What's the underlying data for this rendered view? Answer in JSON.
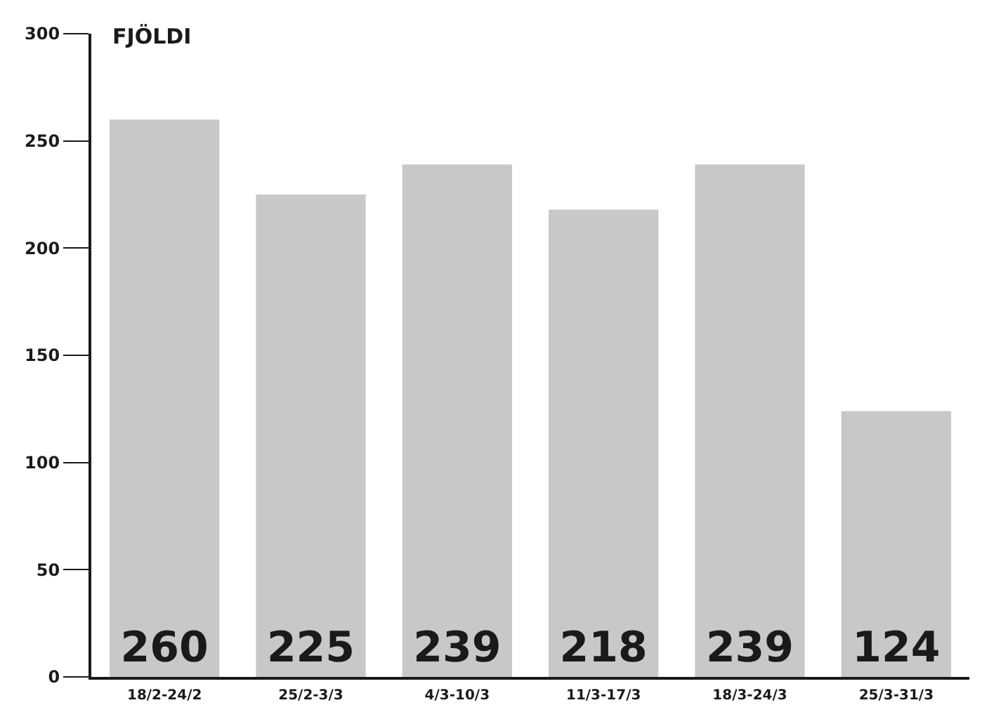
{
  "chart_data": {
    "type": "bar",
    "ylabel": "FJÖLDI",
    "categories": [
      "18/2-24/2",
      "25/2-3/3",
      "4/3-10/3",
      "11/3-17/3",
      "18/3-24/3",
      "25/3-31/3"
    ],
    "values": [
      260,
      225,
      239,
      218,
      239,
      124
    ],
    "color": "#c8c8c8",
    "ylim": [
      0,
      300
    ],
    "yticks": [
      0,
      50,
      100,
      150,
      200,
      250,
      300
    ],
    "data_labels": true,
    "grid": false,
    "legend": false
  }
}
